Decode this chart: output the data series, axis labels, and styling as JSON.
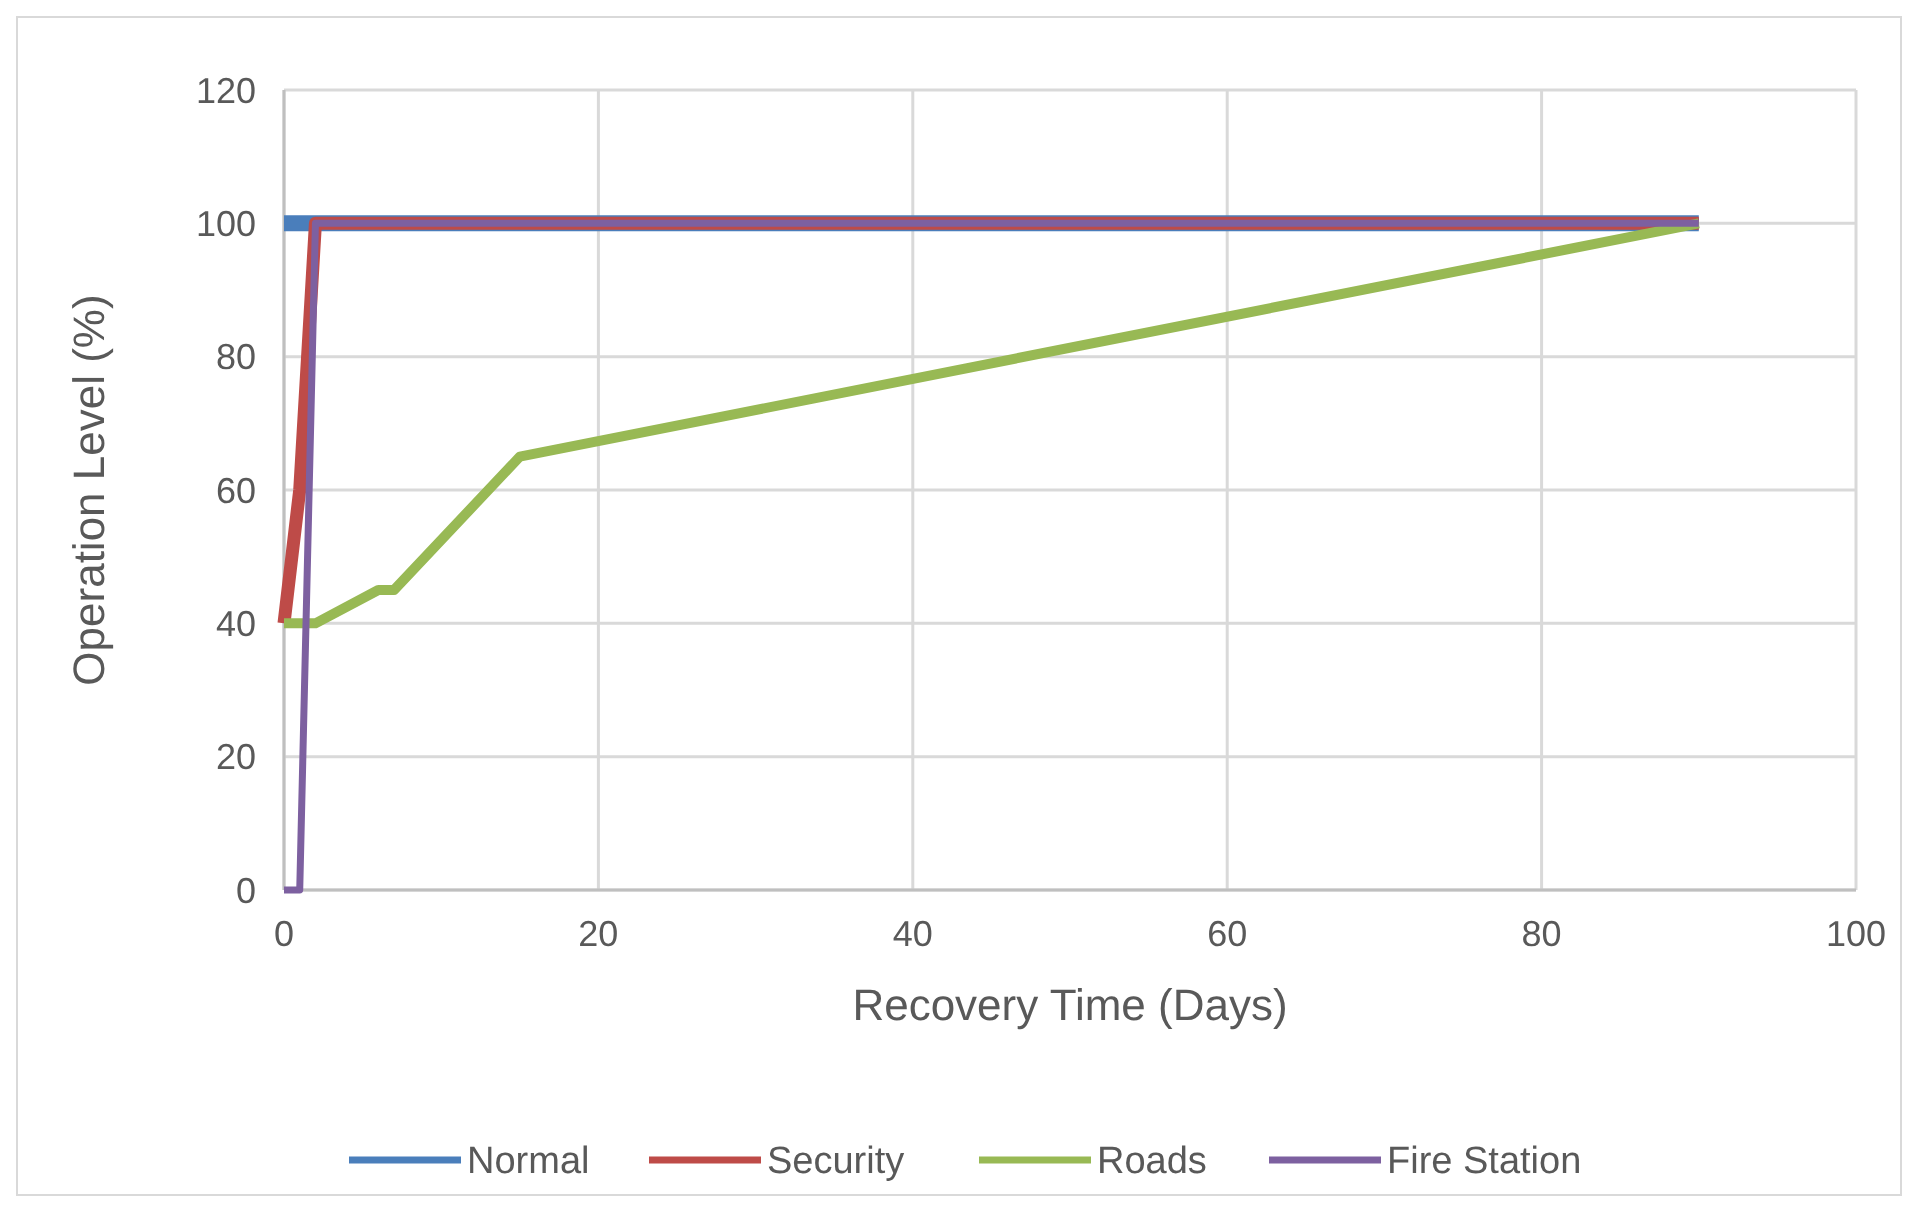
{
  "chart_data": {
    "type": "line",
    "xlabel": "Recovery Time (Days)",
    "ylabel": "Operation Level (%)",
    "xlim": [
      0,
      100
    ],
    "xticks": [
      0,
      20,
      40,
      60,
      80,
      100
    ],
    "ylim": [
      0,
      120
    ],
    "yticks": [
      0,
      20,
      40,
      60,
      80,
      100,
      120
    ],
    "grid": true,
    "legend": "bottom",
    "marker": "none",
    "line_style": "solid",
    "series": [
      {
        "name": "Normal",
        "color": "#4a7ebb",
        "x": [
          0,
          90
        ],
        "values": [
          100,
          100
        ]
      },
      {
        "name": "Security",
        "color": "#be4b48",
        "x": [
          0,
          1,
          2,
          90
        ],
        "values": [
          40,
          60,
          100,
          100
        ]
      },
      {
        "name": "Roads",
        "color": "#98b954",
        "x": [
          0,
          2,
          6,
          7,
          15,
          90
        ],
        "values": [
          40,
          40,
          45,
          45,
          65,
          100
        ]
      },
      {
        "name": "Fire Station",
        "color": "#7d60a0",
        "x": [
          0,
          1,
          2,
          90
        ],
        "values": [
          0,
          0,
          100,
          100
        ]
      }
    ]
  }
}
